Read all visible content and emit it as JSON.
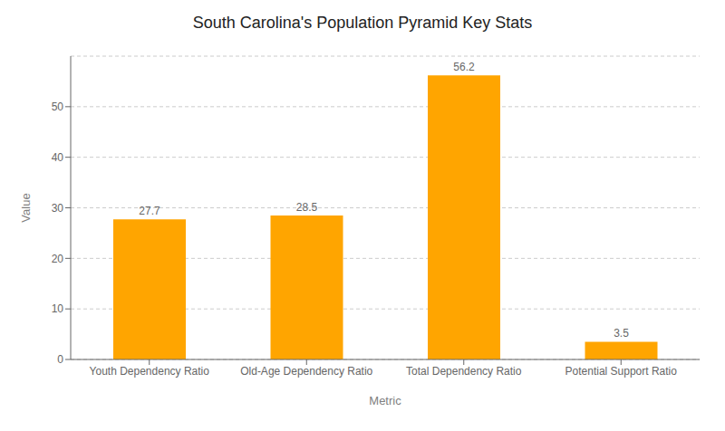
{
  "chart_data": {
    "type": "bar",
    "title": "South Carolina's Population Pyramid Key Stats",
    "xlabel": "Metric",
    "ylabel": "Value",
    "categories": [
      "Youth Dependency Ratio",
      "Old-Age Dependency Ratio",
      "Total Dependency Ratio",
      "Potential Support Ratio"
    ],
    "values": [
      27.7,
      28.5,
      56.2,
      3.5
    ],
    "color": "#FFA500",
    "ylim": [
      0,
      60
    ],
    "yticks": [
      0,
      10,
      20,
      30,
      40,
      50
    ],
    "grid": true,
    "data_labels": true
  }
}
